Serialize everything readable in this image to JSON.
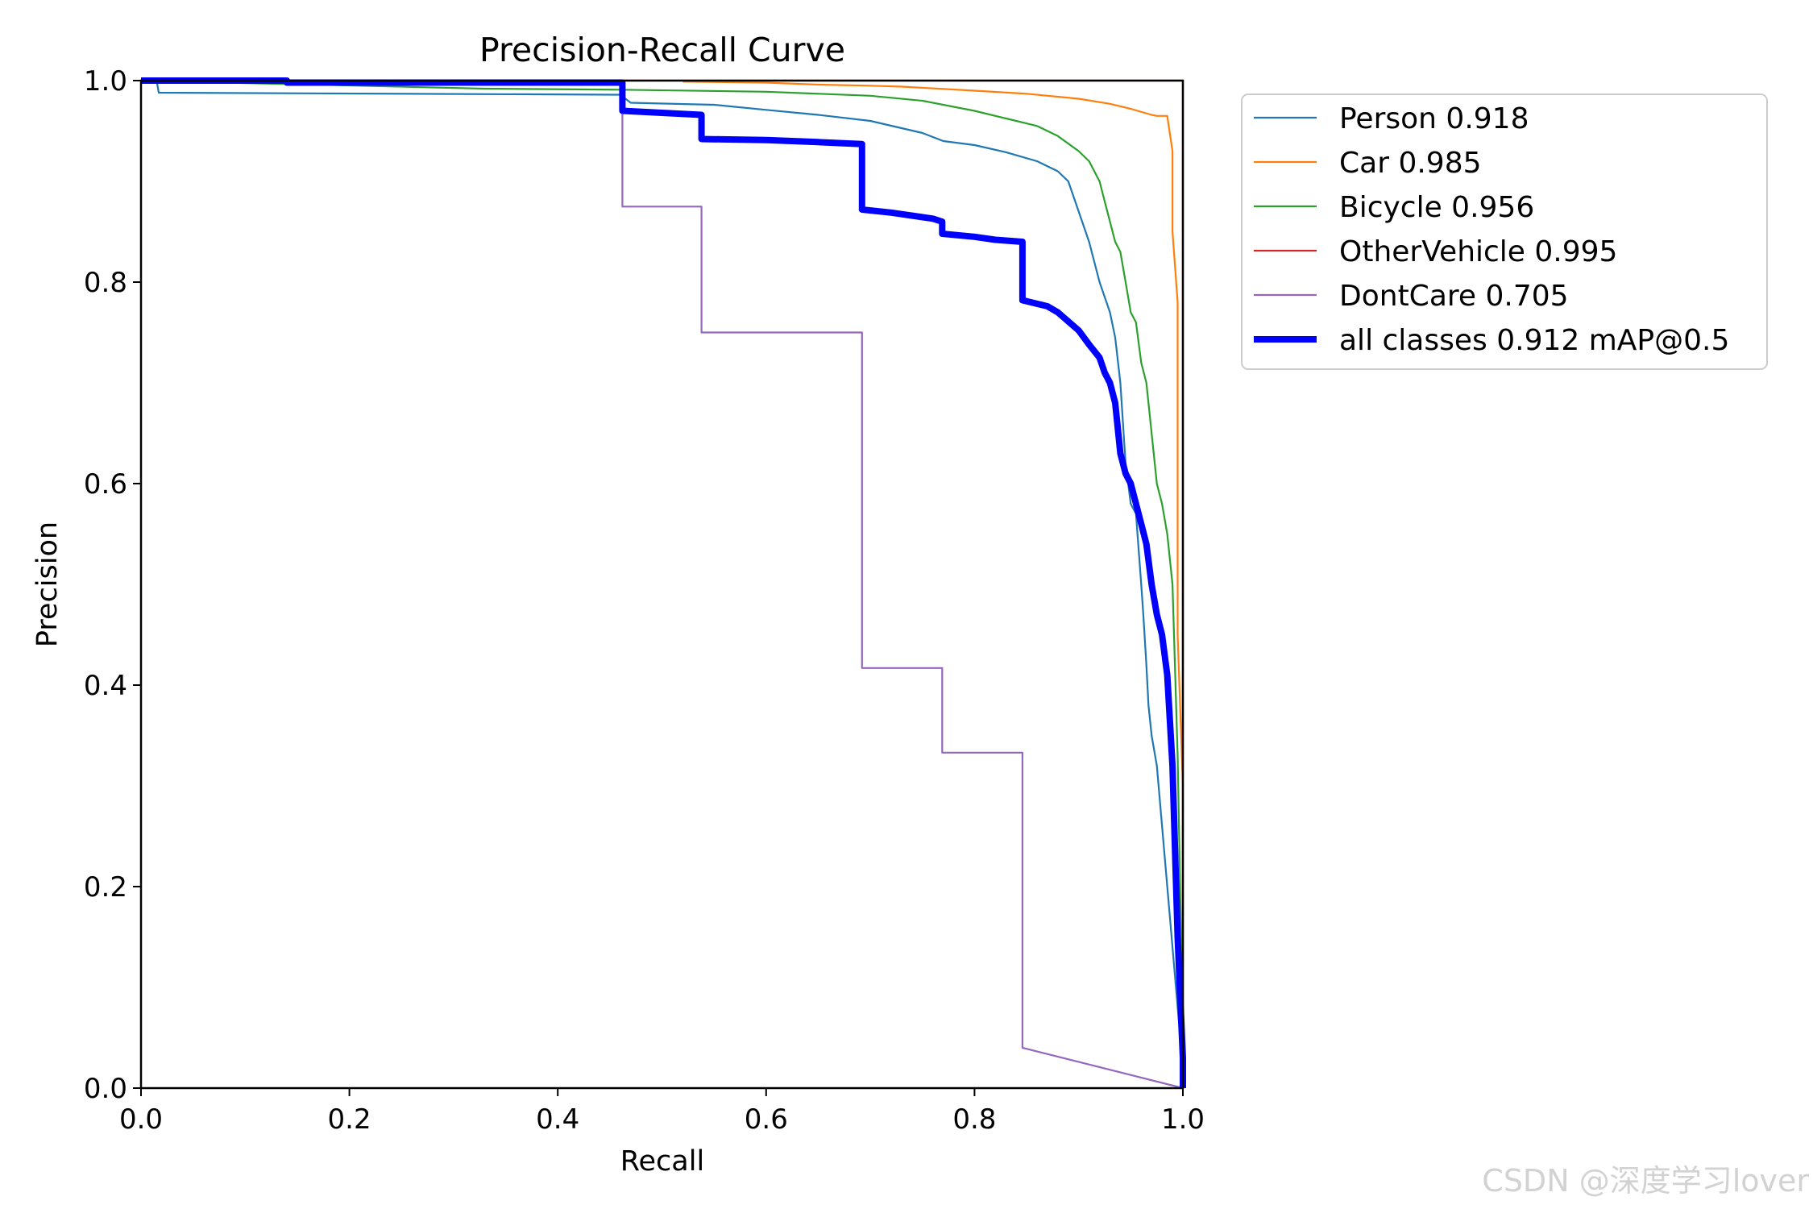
{
  "chart_data": {
    "type": "line",
    "title": "Precision-Recall Curve",
    "xlabel": "Recall",
    "ylabel": "Precision",
    "xlim": [
      0,
      1
    ],
    "ylim": [
      0,
      1
    ],
    "xticks": [
      "0.0",
      "0.2",
      "0.4",
      "0.6",
      "0.8",
      "1.0"
    ],
    "yticks": [
      "0.0",
      "0.2",
      "0.4",
      "0.6",
      "0.8",
      "1.0"
    ],
    "grid": false,
    "legend_position": "outside-right-top",
    "series": [
      {
        "name": "Person 0.918",
        "color": "#1f77b4",
        "width": "thin",
        "x": [
          0,
          0.015,
          0.017,
          0.46,
          0.47,
          0.55,
          0.6,
          0.65,
          0.7,
          0.75,
          0.77,
          0.8,
          0.83,
          0.86,
          0.88,
          0.89,
          0.9,
          0.91,
          0.92,
          0.93,
          0.935,
          0.94,
          0.945,
          0.95,
          0.955,
          0.96,
          0.962,
          0.965,
          0.967,
          0.97,
          0.975,
          1.0,
          1.0
        ],
        "y": [
          1.0,
          1.0,
          0.988,
          0.986,
          0.978,
          0.976,
          0.971,
          0.966,
          0.96,
          0.948,
          0.94,
          0.936,
          0.929,
          0.92,
          0.91,
          0.9,
          0.87,
          0.84,
          0.8,
          0.77,
          0.745,
          0.7,
          0.62,
          0.58,
          0.57,
          0.5,
          0.47,
          0.42,
          0.38,
          0.35,
          0.32,
          0.02,
          0.0
        ]
      },
      {
        "name": "Car 0.985",
        "color": "#ff7f0e",
        "width": "thin",
        "x": [
          0.52,
          0.6,
          0.65,
          0.7,
          0.73,
          0.8,
          0.85,
          0.9,
          0.93,
          0.95,
          0.97,
          0.975,
          0.985,
          0.99,
          0.99,
          0.995,
          0.995,
          1.0,
          1.0,
          1.0
        ],
        "y": [
          0.999,
          0.998,
          0.996,
          0.995,
          0.994,
          0.99,
          0.987,
          0.982,
          0.977,
          0.972,
          0.966,
          0.965,
          0.965,
          0.93,
          0.85,
          0.78,
          0.45,
          0.3,
          0.1,
          0.0
        ]
      },
      {
        "name": "Bicycle 0.956",
        "color": "#2ca02c",
        "width": "thin",
        "x": [
          0,
          0.33,
          0.46,
          0.6,
          0.7,
          0.75,
          0.8,
          0.82,
          0.84,
          0.86,
          0.88,
          0.9,
          0.91,
          0.92,
          0.925,
          0.93,
          0.935,
          0.94,
          0.945,
          0.95,
          0.955,
          0.96,
          0.965,
          0.97,
          0.975,
          0.98,
          0.985,
          0.99,
          0.995,
          1.0
        ],
        "y": [
          1.0,
          0.992,
          0.991,
          0.989,
          0.985,
          0.98,
          0.97,
          0.965,
          0.96,
          0.955,
          0.945,
          0.93,
          0.92,
          0.9,
          0.88,
          0.86,
          0.84,
          0.83,
          0.8,
          0.77,
          0.76,
          0.72,
          0.7,
          0.65,
          0.6,
          0.58,
          0.55,
          0.5,
          0.33,
          0.05
        ]
      },
      {
        "name": "OtherVehicle 0.995",
        "color": "#d62728",
        "width": "thin",
        "x": [
          0,
          0.999,
          1.0,
          1.0
        ],
        "y": [
          1.0,
          1.0,
          1.0,
          0.0
        ]
      },
      {
        "name": "DontCare 0.705",
        "color": "#9467bd",
        "width": "thin",
        "x": [
          0,
          0.462,
          0.462,
          0.538,
          0.538,
          0.692,
          0.692,
          0.769,
          0.769,
          0.846,
          0.846,
          1.0
        ],
        "y": [
          1.0,
          1.0,
          0.875,
          0.875,
          0.75,
          0.75,
          0.417,
          0.417,
          0.333,
          0.333,
          0.04,
          0.0
        ]
      },
      {
        "name": "all classes 0.912 mAP@0.5",
        "color": "#0000ff",
        "width": "thick",
        "x": [
          0,
          0.14,
          0.14,
          0.462,
          0.462,
          0.538,
          0.538,
          0.6,
          0.65,
          0.692,
          0.692,
          0.72,
          0.76,
          0.769,
          0.769,
          0.8,
          0.82,
          0.846,
          0.846,
          0.87,
          0.88,
          0.9,
          0.91,
          0.92,
          0.925,
          0.93,
          0.935,
          0.94,
          0.945,
          0.95,
          0.955,
          0.96,
          0.965,
          0.97,
          0.975,
          0.98,
          0.985,
          0.99,
          0.995,
          1.0,
          1.0
        ],
        "y": [
          1.0,
          1.0,
          0.998,
          0.998,
          0.97,
          0.966,
          0.942,
          0.941,
          0.939,
          0.937,
          0.872,
          0.869,
          0.863,
          0.86,
          0.848,
          0.845,
          0.842,
          0.84,
          0.782,
          0.776,
          0.77,
          0.752,
          0.738,
          0.725,
          0.71,
          0.7,
          0.68,
          0.63,
          0.61,
          0.6,
          0.58,
          0.56,
          0.54,
          0.5,
          0.47,
          0.45,
          0.41,
          0.32,
          0.15,
          0.03,
          0.0
        ]
      }
    ]
  },
  "watermark": "CSDN @深度学习lover"
}
